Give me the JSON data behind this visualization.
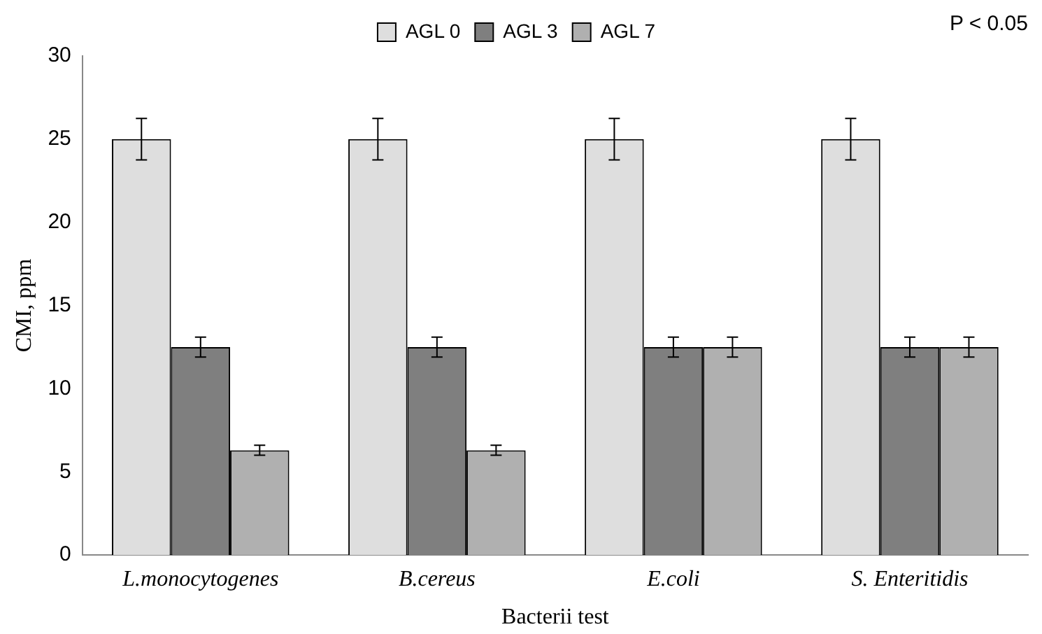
{
  "chart_data": {
    "type": "bar",
    "xlabel": "Bacterii test",
    "ylabel": "CMI, ppm",
    "categories": [
      "L.monocytogenes",
      "B.cereus",
      "E.coli",
      "S. Enteritidis"
    ],
    "series": [
      {
        "name": "AGL 0",
        "color": "#dedede",
        "values": [
          25,
          25,
          25,
          25
        ],
        "errors": [
          1.25,
          1.25,
          1.25,
          1.25
        ]
      },
      {
        "name": "AGL 3",
        "color": "#7f7f7f",
        "values": [
          12.5,
          12.5,
          12.5,
          12.5
        ],
        "errors": [
          0.6,
          0.6,
          0.6,
          0.6
        ]
      },
      {
        "name": "AGL 7",
        "color": "#b0b0b0",
        "values": [
          6.3,
          6.3,
          12.5,
          12.5
        ],
        "errors": [
          0.3,
          0.3,
          0.6,
          0.6
        ]
      }
    ],
    "ylim": [
      0,
      30
    ],
    "yticks": [
      0,
      5,
      10,
      15,
      20,
      25,
      30
    ],
    "grid": false,
    "legend": "top",
    "annotations": [
      "P < 0.05"
    ]
  }
}
